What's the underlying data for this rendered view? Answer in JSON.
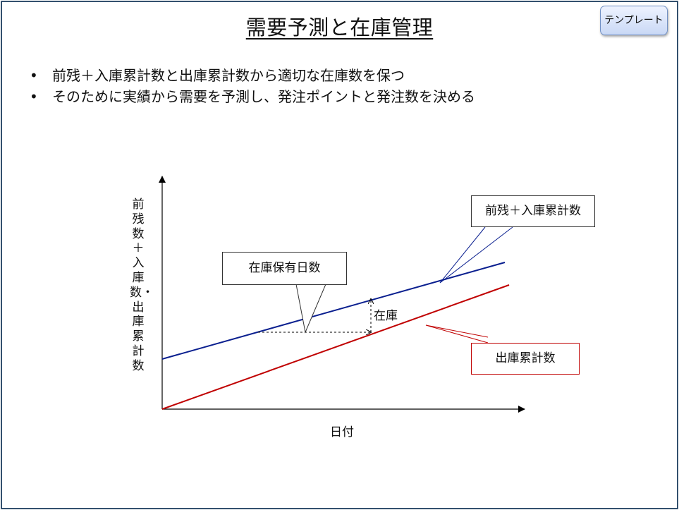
{
  "title": "需要予測と在庫管理",
  "template_button_label": "テンプレート",
  "bullets": [
    "前残＋入庫累計数と出庫累計数から適切な在庫数を保つ",
    "そのために実績から需要を予測し、発注ポイントと発注数を決める"
  ],
  "bullet_symbol": "•",
  "diagram": {
    "y_axis_label": "前残数＋入庫数・出庫累計数",
    "x_axis_label": "日付",
    "callout_inbound": "前残＋入庫累計数",
    "callout_outbound": "出庫累計数",
    "callout_holding_days": "在庫保有日数",
    "inventory_label": "在庫",
    "colors": {
      "inbound_line": "#0a1f8f",
      "outbound_line": "#c00000",
      "axis": "#000000",
      "frame": "#34506e"
    }
  }
}
